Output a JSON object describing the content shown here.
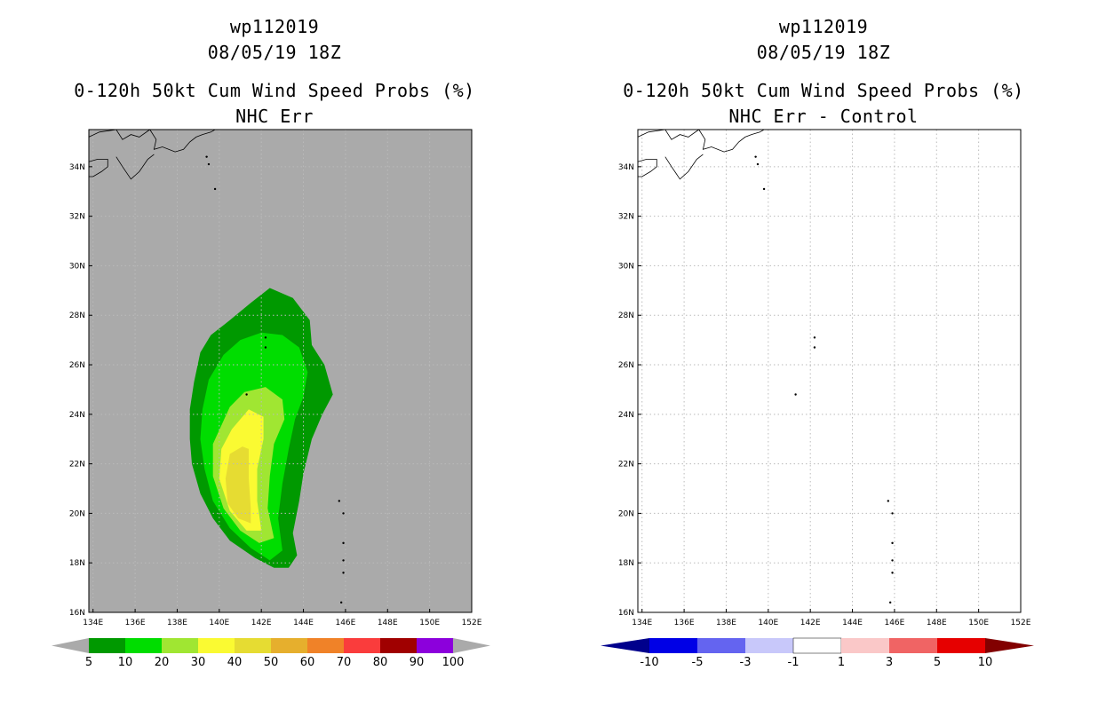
{
  "chart_data": [
    {
      "type": "contour-map",
      "title_lines": [
        "wp112019",
        "08/05/19 18Z",
        "0-120h 50kt Cum Wind Speed Probs (%)",
        "NHC Err"
      ],
      "x_ticks": [
        "134E",
        "136E",
        "138E",
        "140E",
        "142E",
        "144E",
        "146E",
        "148E",
        "150E",
        "152E"
      ],
      "y_ticks": [
        "16N",
        "18N",
        "20N",
        "22N",
        "24N",
        "26N",
        "28N",
        "30N",
        "32N",
        "34N"
      ],
      "xlim_deg_e": [
        133.8,
        152
      ],
      "ylim_deg_n": [
        16,
        35.5
      ],
      "colorbar": {
        "labels": [
          "5",
          "10",
          "20",
          "30",
          "40",
          "50",
          "60",
          "70",
          "80",
          "90",
          "100"
        ],
        "colors": [
          "#009900",
          "#00dd00",
          "#a0e632",
          "#fafa32",
          "#e6dc32",
          "#e6af2d",
          "#f08228",
          "#fa3c3c",
          "#a00000",
          "#8c00dc"
        ],
        "end_color": "#aaaaaa"
      },
      "background": "#aaaaaa",
      "contours": [
        {
          "level": 5,
          "color": "#009900",
          "points": [
            [
              139.6,
              27.2
            ],
            [
              140.5,
              27.8
            ],
            [
              141.5,
              28.5
            ],
            [
              142.4,
              29.1
            ],
            [
              143.5,
              28.7
            ],
            [
              144.3,
              27.8
            ],
            [
              144.4,
              26.8
            ],
            [
              145.0,
              26.0
            ],
            [
              145.4,
              24.8
            ],
            [
              144.9,
              24.0
            ],
            [
              144.4,
              23.0
            ],
            [
              144.0,
              21.6
            ],
            [
              143.8,
              20.5
            ],
            [
              143.5,
              19.2
            ],
            [
              143.7,
              18.3
            ],
            [
              143.3,
              17.8
            ],
            [
              142.6,
              17.8
            ],
            [
              141.7,
              18.2
            ],
            [
              140.5,
              18.9
            ],
            [
              139.7,
              19.8
            ],
            [
              139.1,
              20.8
            ],
            [
              138.7,
              22.0
            ],
            [
              138.6,
              23.0
            ],
            [
              138.6,
              24.2
            ],
            [
              138.8,
              25.3
            ],
            [
              139.1,
              26.5
            ]
          ]
        },
        {
          "level": 10,
          "color": "#00dd00",
          "points": [
            [
              140.2,
              26.4
            ],
            [
              141.0,
              27.0
            ],
            [
              142.0,
              27.3
            ],
            [
              143.0,
              27.2
            ],
            [
              143.8,
              26.7
            ],
            [
              144.2,
              25.7
            ],
            [
              144.0,
              24.7
            ],
            [
              143.6,
              23.8
            ],
            [
              143.3,
              22.6
            ],
            [
              143.0,
              21.2
            ],
            [
              142.8,
              19.8
            ],
            [
              143.0,
              18.5
            ],
            [
              142.4,
              18.1
            ],
            [
              141.5,
              18.6
            ],
            [
              140.5,
              19.4
            ],
            [
              139.7,
              20.5
            ],
            [
              139.3,
              21.8
            ],
            [
              139.1,
              23.0
            ],
            [
              139.2,
              24.2
            ],
            [
              139.5,
              25.4
            ]
          ]
        },
        {
          "level": 20,
          "color": "#a0e632",
          "points": [
            [
              140.5,
              24.3
            ],
            [
              141.2,
              24.9
            ],
            [
              142.2,
              25.1
            ],
            [
              143.0,
              24.6
            ],
            [
              143.1,
              23.8
            ],
            [
              142.6,
              22.8
            ],
            [
              142.4,
              21.5
            ],
            [
              142.3,
              20.2
            ],
            [
              142.6,
              19.0
            ],
            [
              141.9,
              18.8
            ],
            [
              141.0,
              19.3
            ],
            [
              140.2,
              20.2
            ],
            [
              139.7,
              21.5
            ],
            [
              139.7,
              22.8
            ]
          ]
        },
        {
          "level": 30,
          "color": "#fafa32",
          "points": [
            [
              140.6,
              23.4
            ],
            [
              141.4,
              24.2
            ],
            [
              142.1,
              23.9
            ],
            [
              142.1,
              23.0
            ],
            [
              141.8,
              21.8
            ],
            [
              141.8,
              20.5
            ],
            [
              142.0,
              19.3
            ],
            [
              141.3,
              19.3
            ],
            [
              140.5,
              20.1
            ],
            [
              140.0,
              21.4
            ],
            [
              140.1,
              22.6
            ]
          ]
        },
        {
          "level": 40,
          "color": "#e6dc32",
          "points": [
            [
              140.5,
              22.4
            ],
            [
              141.1,
              22.7
            ],
            [
              141.4,
              22.6
            ],
            [
              141.4,
              21.4
            ],
            [
              141.5,
              20.2
            ],
            [
              141.5,
              19.6
            ],
            [
              140.9,
              19.8
            ],
            [
              140.4,
              20.4
            ],
            [
              140.3,
              21.4
            ]
          ]
        }
      ]
    },
    {
      "type": "contour-map",
      "title_lines": [
        "wp112019",
        "08/05/19 18Z",
        "0-120h 50kt Cum Wind Speed Probs (%)",
        "NHC Err - Control"
      ],
      "x_ticks": [
        "134E",
        "136E",
        "138E",
        "140E",
        "142E",
        "144E",
        "146E",
        "148E",
        "150E",
        "152E"
      ],
      "y_ticks": [
        "16N",
        "18N",
        "20N",
        "22N",
        "24N",
        "26N",
        "28N",
        "30N",
        "32N",
        "34N"
      ],
      "xlim_deg_e": [
        133.8,
        152
      ],
      "ylim_deg_n": [
        16,
        35.5
      ],
      "colorbar": {
        "labels": [
          "-10",
          "-5",
          "-3",
          "-1",
          "1",
          "3",
          "5",
          "10"
        ],
        "colors": [
          "#0000e6",
          "#6464f0",
          "#c8c8fa",
          "#ffffff",
          "#fac8c8",
          "#f06464",
          "#e60000"
        ],
        "low_end_color": "#00008c",
        "high_end_color": "#820000"
      },
      "background": "#ffffff",
      "contours": []
    }
  ]
}
